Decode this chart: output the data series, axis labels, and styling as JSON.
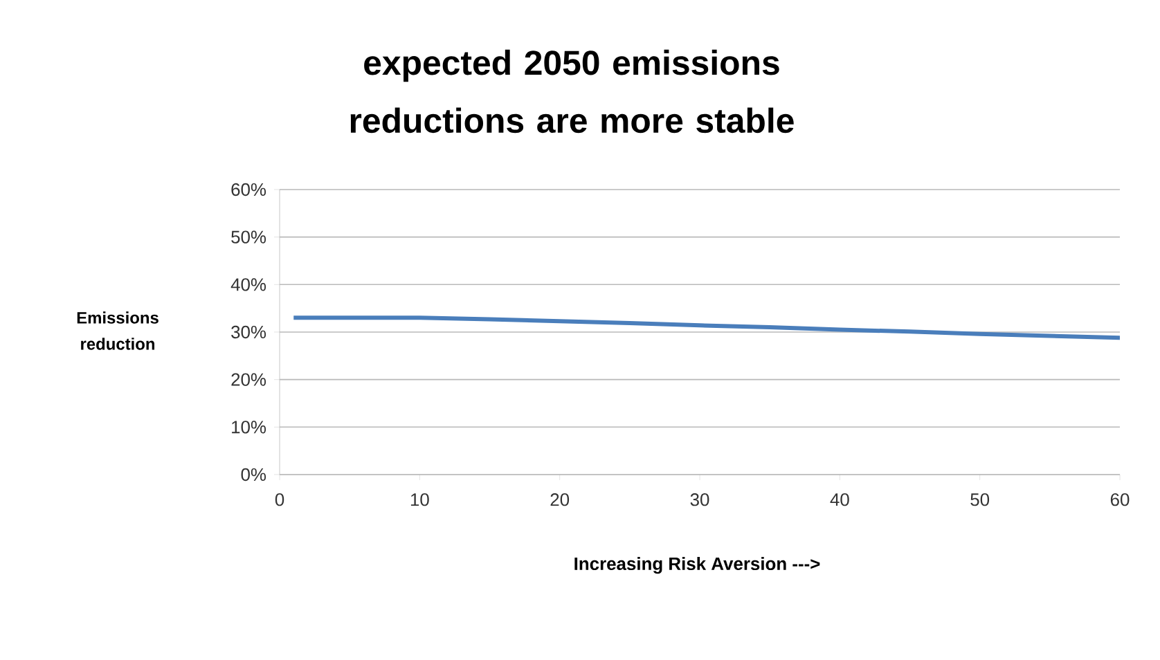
{
  "chart_data": {
    "type": "line",
    "title": "expected 2050 emissions reductions are more stable",
    "xlabel": "Increasing Risk Aversion  --->",
    "ylabel": "Emissions reduction",
    "series": [
      {
        "color": "#4a7ebb",
        "x": [
          1,
          5,
          10,
          15,
          20,
          25,
          30,
          35,
          40,
          45,
          50,
          55,
          60
        ],
        "values": [
          33,
          33,
          33,
          32.7,
          32.3,
          31.9,
          31.4,
          31,
          30.5,
          30.1,
          29.6,
          29.2,
          28.8
        ]
      }
    ],
    "xlim": [
      0,
      60
    ],
    "xticks": [
      0,
      10,
      20,
      30,
      40,
      50,
      60
    ],
    "ylim": [
      0,
      60
    ],
    "yticks": [
      {
        "value": 0,
        "label": "0%"
      },
      {
        "value": 10,
        "label": "10%"
      },
      {
        "value": 20,
        "label": "20%"
      },
      {
        "value": 30,
        "label": "30%"
      },
      {
        "value": 40,
        "label": "40%"
      },
      {
        "value": 50,
        "label": "50%"
      },
      {
        "value": 60,
        "label": "60%"
      }
    ],
    "grid": "y",
    "marker": "none",
    "line_style": "solid"
  }
}
